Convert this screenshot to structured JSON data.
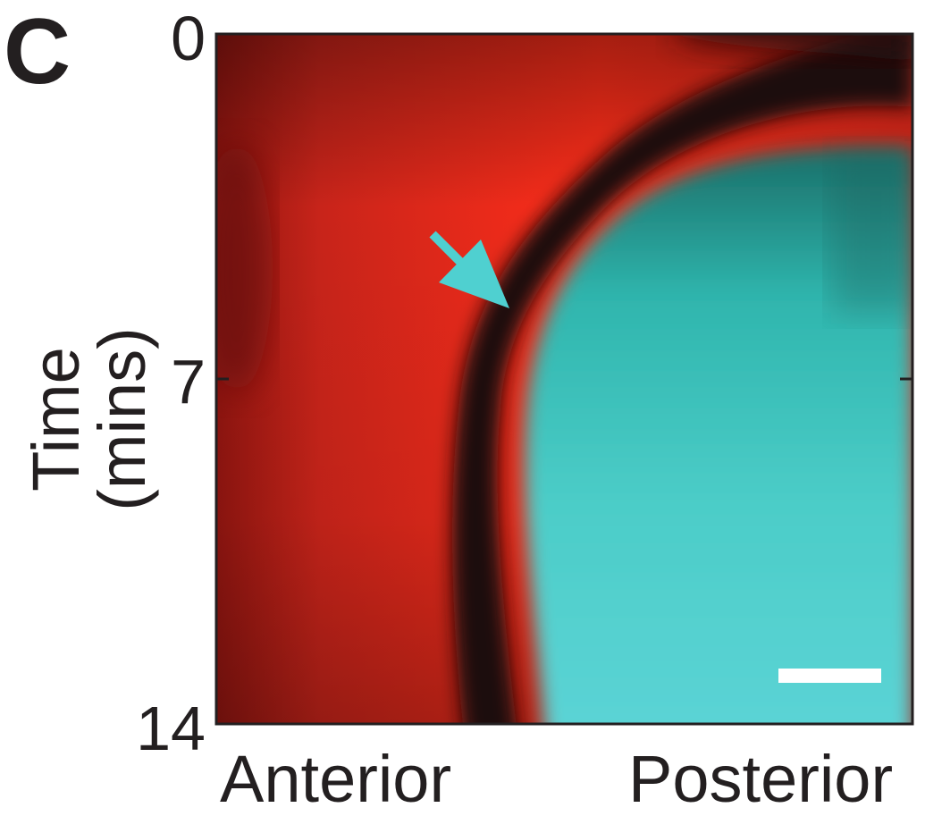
{
  "panel_label": "C",
  "y_axis": {
    "label": "Time (mins)",
    "ticks": [
      "0",
      "7",
      "14"
    ]
  },
  "x_axis": {
    "left_label": "Anterior",
    "right_label": "Posterior"
  },
  "colors": {
    "anterior_signal": "#ff2e1a",
    "posterior_signal": "#4cd0cc",
    "boundary": "#1a0d0d",
    "arrow": "#4fd0d0",
    "scale_bar": "#ffffff"
  },
  "annotations": {
    "arrow": "cyan arrow pointing to front boundary",
    "scale_bar": "white scale bar"
  }
}
